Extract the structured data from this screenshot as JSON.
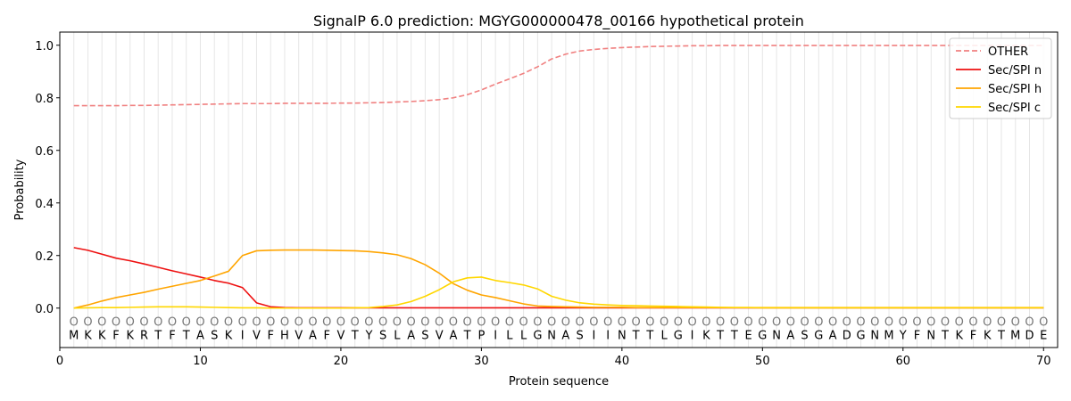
{
  "chart_data": {
    "type": "line",
    "title": "SignalP 6.0 prediction: MGYG000000478_00166 hypothetical protein",
    "xlabel": "Protein sequence",
    "ylabel": "Probability",
    "xlim": [
      0,
      71
    ],
    "ylim": [
      -0.15,
      1.05
    ],
    "x_ticks": [
      0,
      10,
      20,
      30,
      40,
      50,
      60,
      70
    ],
    "y_ticks": [
      0.0,
      0.2,
      0.4,
      0.6,
      0.8,
      1.0
    ],
    "x_tick_labels": [
      "0",
      "10",
      "20",
      "30",
      "40",
      "50",
      "60",
      "70"
    ],
    "y_tick_labels": [
      "0.0",
      "0.2",
      "0.4",
      "0.6",
      "0.8",
      "1.0"
    ],
    "grid": "vertical lines at each residue position",
    "legend_position": "top-right",
    "sequence": [
      "M",
      "K",
      "K",
      "F",
      "K",
      "R",
      "T",
      "F",
      "T",
      "A",
      "S",
      "K",
      "I",
      "V",
      "F",
      "H",
      "V",
      "A",
      "F",
      "V",
      "T",
      "Y",
      "S",
      "L",
      "A",
      "S",
      "V",
      "A",
      "T",
      "P",
      "I",
      "L",
      "L",
      "G",
      "N",
      "A",
      "S",
      "I",
      "I",
      "N",
      "T",
      "T",
      "L",
      "G",
      "I",
      "K",
      "T",
      "T",
      "E",
      "G",
      "N",
      "A",
      "S",
      "G",
      "A",
      "D",
      "G",
      "N",
      "M",
      "Y",
      "F",
      "N",
      "T",
      "K",
      "F",
      "K",
      "T",
      "M",
      "D",
      "E"
    ],
    "position_marker": "O",
    "series": [
      {
        "name": "OTHER",
        "color": "#f08080",
        "style": "dashed",
        "values": [
          0.77,
          0.77,
          0.77,
          0.77,
          0.771,
          0.771,
          0.772,
          0.773,
          0.774,
          0.775,
          0.776,
          0.777,
          0.778,
          0.778,
          0.778,
          0.779,
          0.779,
          0.779,
          0.779,
          0.78,
          0.78,
          0.781,
          0.782,
          0.784,
          0.786,
          0.789,
          0.793,
          0.8,
          0.812,
          0.83,
          0.852,
          0.872,
          0.893,
          0.918,
          0.948,
          0.966,
          0.978,
          0.984,
          0.988,
          0.991,
          0.993,
          0.995,
          0.996,
          0.997,
          0.998,
          0.998,
          0.999,
          0.999,
          0.999,
          0.999,
          0.999,
          0.999,
          0.999,
          0.999,
          0.999,
          0.999,
          0.999,
          0.999,
          0.999,
          0.999,
          0.999,
          0.999,
          0.999,
          0.999,
          0.999,
          0.999,
          0.999,
          0.999,
          0.999,
          0.999
        ]
      },
      {
        "name": "Sec/SPI n",
        "color": "#ee1111",
        "style": "solid",
        "values": [
          0.23,
          0.22,
          0.205,
          0.19,
          0.18,
          0.168,
          0.155,
          0.142,
          0.13,
          0.118,
          0.105,
          0.095,
          0.078,
          0.02,
          0.005,
          0.002,
          0.001,
          0.001,
          0.001,
          0.001,
          0.001,
          0.001,
          0.001,
          0.001,
          0.001,
          0.001,
          0.001,
          0.001,
          0.001,
          0.001,
          0.001,
          0.001,
          0.001,
          0.001,
          0.001,
          0.001,
          0.001,
          0.001,
          0.001,
          0.001,
          0.001,
          0.001,
          0.001,
          0.001,
          0.001,
          0.001,
          0.001,
          0.001,
          0.001,
          0.001,
          0.001,
          0.001,
          0.001,
          0.001,
          0.001,
          0.001,
          0.001,
          0.001,
          0.001,
          0.001,
          0.001,
          0.001,
          0.001,
          0.001,
          0.001,
          0.001,
          0.001,
          0.001,
          0.001,
          0.001
        ]
      },
      {
        "name": "Sec/SPI h",
        "color": "#ffa500",
        "style": "solid",
        "values": [
          0.0,
          0.012,
          0.027,
          0.04,
          0.05,
          0.06,
          0.072,
          0.083,
          0.094,
          0.105,
          0.122,
          0.14,
          0.2,
          0.218,
          0.22,
          0.221,
          0.221,
          0.221,
          0.22,
          0.219,
          0.218,
          0.215,
          0.21,
          0.203,
          0.188,
          0.165,
          0.133,
          0.093,
          0.068,
          0.05,
          0.04,
          0.028,
          0.016,
          0.008,
          0.006,
          0.005,
          0.004,
          0.003,
          0.003,
          0.003,
          0.002,
          0.002,
          0.002,
          0.002,
          0.002,
          0.002,
          0.002,
          0.002,
          0.002,
          0.002,
          0.002,
          0.002,
          0.002,
          0.002,
          0.002,
          0.002,
          0.002,
          0.002,
          0.002,
          0.002,
          0.002,
          0.002,
          0.002,
          0.002,
          0.002,
          0.002,
          0.002,
          0.002,
          0.002,
          0.002
        ]
      },
      {
        "name": "Sec/SPI c",
        "color": "#ffd700",
        "style": "solid",
        "values": [
          0.0,
          0.001,
          0.002,
          0.002,
          0.003,
          0.004,
          0.005,
          0.005,
          0.005,
          0.004,
          0.003,
          0.002,
          0.001,
          0.001,
          0.0,
          0.0,
          0.0,
          0.0,
          0.0,
          0.0,
          0.001,
          0.002,
          0.006,
          0.012,
          0.025,
          0.045,
          0.07,
          0.1,
          0.115,
          0.118,
          0.105,
          0.097,
          0.088,
          0.073,
          0.045,
          0.03,
          0.02,
          0.015,
          0.012,
          0.01,
          0.009,
          0.008,
          0.007,
          0.006,
          0.005,
          0.004,
          0.003,
          0.002,
          0.002,
          0.001,
          0.001,
          0.001,
          0.001,
          0.001,
          0.001,
          0.001,
          0.001,
          0.001,
          0.001,
          0.001,
          0.001,
          0.001,
          0.001,
          0.001,
          0.001,
          0.001,
          0.001,
          0.001,
          0.001,
          0.001
        ]
      }
    ]
  }
}
